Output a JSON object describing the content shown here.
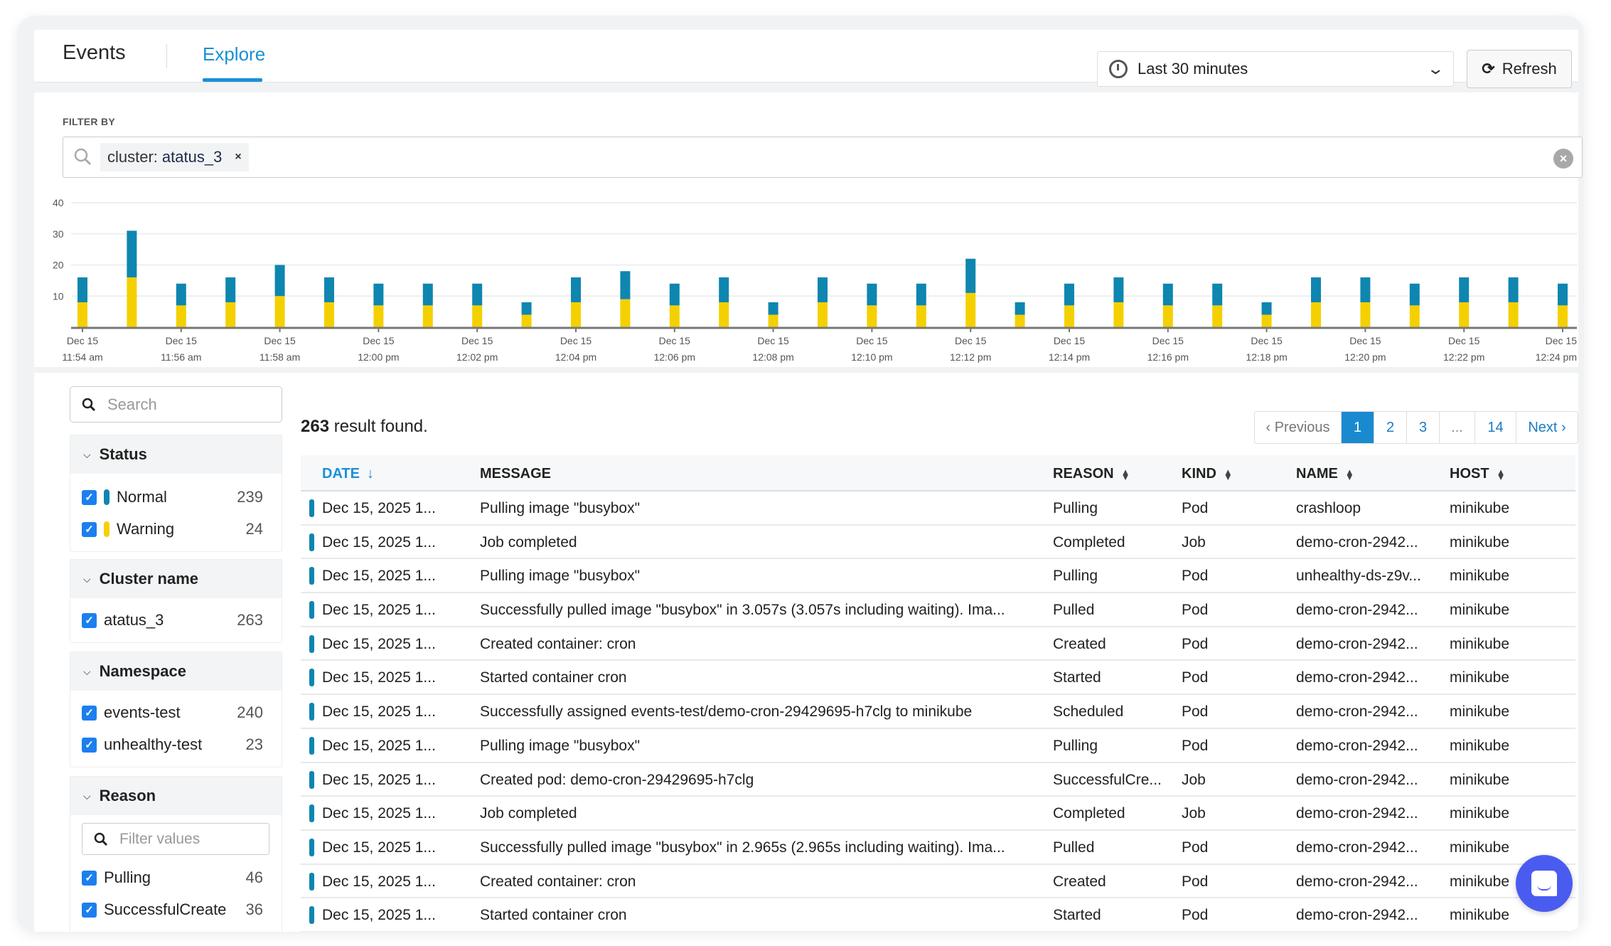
{
  "header": {
    "title": "Events",
    "tab": "Explore",
    "time_range": "Last 30 minutes",
    "refresh_label": "Refresh",
    "refresh_icon": "refresh-icon",
    "clock_icon": "clock-icon"
  },
  "filter": {
    "label": "FILTER BY",
    "chip_key": "cluster:",
    "chip_value": "atatus_3",
    "chip_remove": "×"
  },
  "chart_data": {
    "type": "bar",
    "stacked": true,
    "ylim": [
      0,
      40
    ],
    "yticks": [
      10,
      20,
      30,
      40
    ],
    "grid": true,
    "colors": {
      "bottom": "#f5d000",
      "top": "#0e86b0"
    },
    "tick_labels": [
      [
        "Dec 15",
        "11:54 am"
      ],
      [
        "Dec 15",
        "11:56 am"
      ],
      [
        "Dec 15",
        "11:58 am"
      ],
      [
        "Dec 15",
        "12:00 pm"
      ],
      [
        "Dec 15",
        "12:02 pm"
      ],
      [
        "Dec 15",
        "12:04 pm"
      ],
      [
        "Dec 15",
        "12:06 pm"
      ],
      [
        "Dec 15",
        "12:08 pm"
      ],
      [
        "Dec 15",
        "12:10 pm"
      ],
      [
        "Dec 15",
        "12:12 pm"
      ],
      [
        "Dec 15",
        "12:14 pm"
      ],
      [
        "Dec 15",
        "12:16 pm"
      ],
      [
        "Dec 15",
        "12:18 pm"
      ],
      [
        "Dec 15",
        "12:20 pm"
      ],
      [
        "Dec 15",
        "12:22 pm"
      ],
      [
        "Dec 15",
        "12:24 pm"
      ]
    ],
    "series": [
      {
        "color": "#f5d000",
        "values": [
          8,
          16,
          7,
          8,
          10,
          8,
          7,
          7,
          7,
          4,
          8,
          9,
          7,
          8,
          4,
          8,
          7,
          7,
          11,
          4,
          7,
          8,
          7,
          7,
          4,
          8,
          8,
          7,
          8,
          8,
          7
        ]
      },
      {
        "color": "#0e86b0",
        "values": [
          8,
          15,
          7,
          8,
          10,
          8,
          7,
          7,
          7,
          4,
          8,
          9,
          7,
          8,
          4,
          8,
          7,
          7,
          11,
          4,
          7,
          8,
          7,
          7,
          4,
          8,
          8,
          7,
          8,
          8,
          7
        ]
      }
    ]
  },
  "sidebar": {
    "search_placeholder": "Search",
    "sections": [
      {
        "title": "Status",
        "items": [
          {
            "label": "Normal",
            "count": "239",
            "color": "#0e86b0"
          },
          {
            "label": "Warning",
            "count": "24",
            "color": "#f5d000"
          }
        ]
      },
      {
        "title": "Cluster name",
        "items": [
          {
            "label": "atatus_3",
            "count": "263"
          }
        ]
      },
      {
        "title": "Namespace",
        "items": [
          {
            "label": "events-test",
            "count": "240"
          },
          {
            "label": "unhealthy-test",
            "count": "23"
          }
        ]
      },
      {
        "title": "Reason",
        "filter_placeholder": "Filter values",
        "items": [
          {
            "label": "Pulling",
            "count": "46"
          },
          {
            "label": "SuccessfulCreate",
            "count": "36"
          }
        ]
      }
    ]
  },
  "results": {
    "count": "263",
    "text": "result found."
  },
  "pagination": {
    "prev": "‹ Previous",
    "pages": [
      "1",
      "2",
      "3",
      "...",
      "14"
    ],
    "active": "1",
    "next": "Next ›"
  },
  "table": {
    "columns": [
      "DATE",
      "MESSAGE",
      "REASON",
      "KIND",
      "NAME",
      "HOST"
    ],
    "sorted_column": "DATE",
    "status_color": "#0e86b0",
    "rows": [
      [
        "Dec 15, 2025 1...",
        "Pulling image \"busybox\"",
        "Pulling",
        "Pod",
        "crashloop",
        "minikube"
      ],
      [
        "Dec 15, 2025 1...",
        "Job completed",
        "Completed",
        "Job",
        "demo-cron-2942...",
        "minikube"
      ],
      [
        "Dec 15, 2025 1...",
        "Pulling image \"busybox\"",
        "Pulling",
        "Pod",
        "unhealthy-ds-z9v...",
        "minikube"
      ],
      [
        "Dec 15, 2025 1...",
        "Successfully pulled image \"busybox\" in 3.057s (3.057s including waiting). Ima...",
        "Pulled",
        "Pod",
        "demo-cron-2942...",
        "minikube"
      ],
      [
        "Dec 15, 2025 1...",
        "Created container: cron",
        "Created",
        "Pod",
        "demo-cron-2942...",
        "minikube"
      ],
      [
        "Dec 15, 2025 1...",
        "Started container cron",
        "Started",
        "Pod",
        "demo-cron-2942...",
        "minikube"
      ],
      [
        "Dec 15, 2025 1...",
        "Successfully assigned events-test/demo-cron-29429695-h7clg to minikube",
        "Scheduled",
        "Pod",
        "demo-cron-2942...",
        "minikube"
      ],
      [
        "Dec 15, 2025 1...",
        "Pulling image \"busybox\"",
        "Pulling",
        "Pod",
        "demo-cron-2942...",
        "minikube"
      ],
      [
        "Dec 15, 2025 1...",
        "Created pod: demo-cron-29429695-h7clg",
        "SuccessfulCre...",
        "Job",
        "demo-cron-2942...",
        "minikube"
      ],
      [
        "Dec 15, 2025 1...",
        "Job completed",
        "Completed",
        "Job",
        "demo-cron-2942...",
        "minikube"
      ],
      [
        "Dec 15, 2025 1...",
        "Successfully pulled image \"busybox\" in 2.965s (2.965s including waiting). Ima...",
        "Pulled",
        "Pod",
        "demo-cron-2942...",
        "minikube"
      ],
      [
        "Dec 15, 2025 1...",
        "Created container: cron",
        "Created",
        "Pod",
        "demo-cron-2942...",
        "minikube"
      ],
      [
        "Dec 15, 2025 1...",
        "Started container cron",
        "Started",
        "Pod",
        "demo-cron-2942...",
        "minikube"
      ]
    ]
  },
  "chat_icon": "chat-bubble-icon"
}
